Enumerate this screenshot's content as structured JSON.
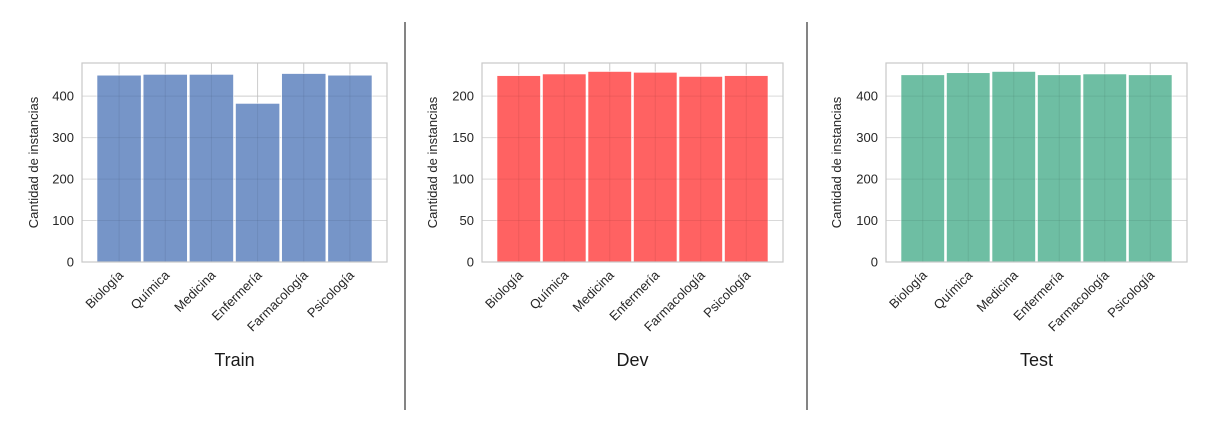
{
  "chart_data": [
    {
      "type": "bar",
      "xlabel": "Train",
      "ylabel": "Cantidad de instancias",
      "categories": [
        "Biología",
        "Química",
        "Medicina",
        "Enfermería",
        "Farmacología",
        "Psicología"
      ],
      "values": [
        451,
        453,
        453,
        383,
        455,
        451
      ],
      "ylim": [
        0,
        480
      ],
      "yticks": [
        0,
        100,
        200,
        300,
        400
      ],
      "color": "#6f8fc5",
      "grid": true
    },
    {
      "type": "bar",
      "xlabel": "Dev",
      "ylabel": "Cantidad de instancias",
      "categories": [
        "Biología",
        "Química",
        "Medicina",
        "Enfermería",
        "Farmacología",
        "Psicología"
      ],
      "values": [
        225,
        227,
        230,
        229,
        224,
        225
      ],
      "ylim": [
        0,
        240
      ],
      "yticks": [
        0,
        50,
        100,
        150,
        200
      ],
      "color": "#ff5a5a",
      "grid": true
    },
    {
      "type": "bar",
      "xlabel": "Test",
      "ylabel": "Cantidad de instancias",
      "categories": [
        "Biología",
        "Química",
        "Medicina",
        "Enfermería",
        "Farmacología",
        "Psicología"
      ],
      "values": [
        452,
        457,
        460,
        452,
        454,
        452
      ],
      "ylim": [
        0,
        480
      ],
      "yticks": [
        0,
        100,
        200,
        300,
        400
      ],
      "color": "#66bb9e",
      "grid": true
    }
  ]
}
